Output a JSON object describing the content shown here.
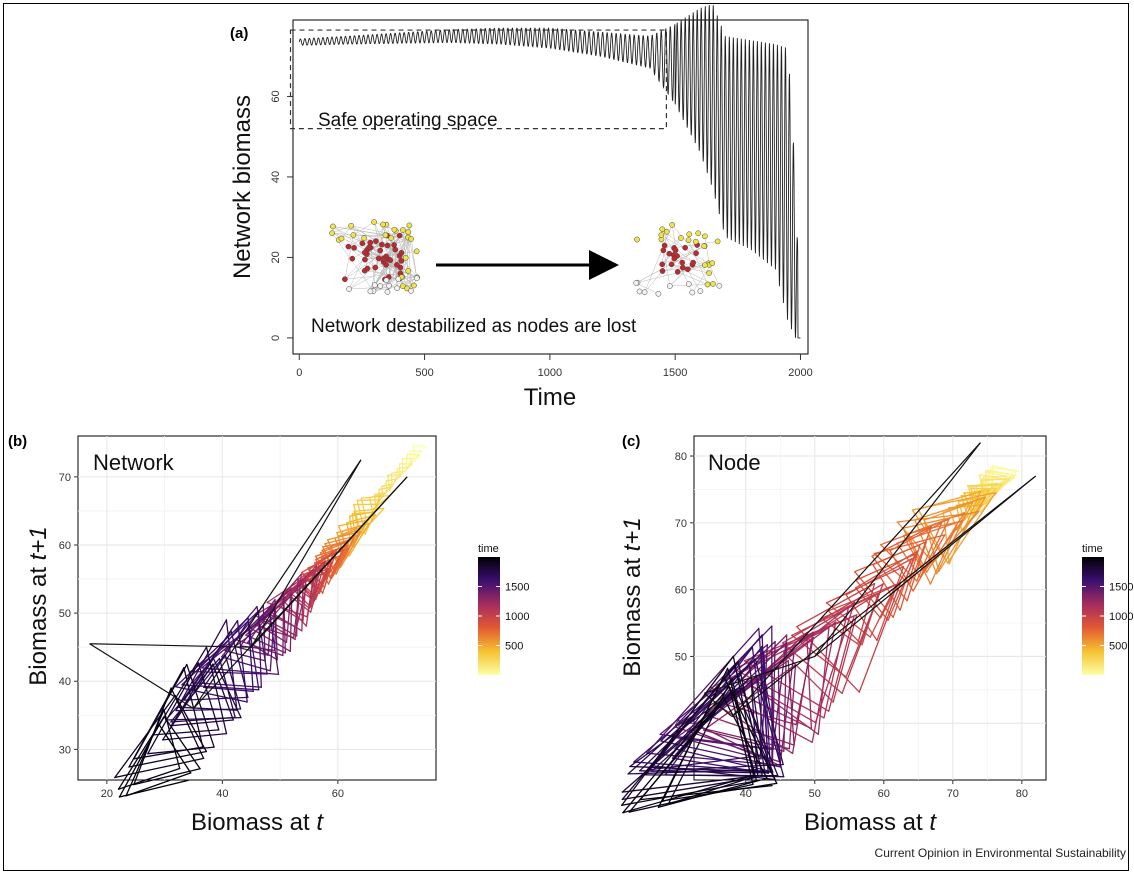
{
  "credit": "Current Opinion in Environmental Sustainability",
  "panel_labels": {
    "a": "(a)",
    "b": "(b)",
    "c": "(c)"
  },
  "colors": {
    "line_a": "#222222",
    "dashed_box": "#333333",
    "gridline": "#e6e6e6",
    "node_red": "#c0282d",
    "node_yellow": "#f0e442",
    "node_white": "#f2f2f2"
  },
  "chart_data": [
    {
      "panel": "(a)",
      "type": "line",
      "xlabel": "Time",
      "ylabel": "Network biomass",
      "xlim": [
        -25,
        2030
      ],
      "ylim": [
        -4,
        79
      ],
      "xticks": [
        0,
        500,
        1000,
        1500,
        2000
      ],
      "yticks": [
        0,
        20,
        40,
        60
      ],
      "series_description_points": {
        "x": [
          0,
          200,
          400,
          600,
          800,
          1000,
          1200,
          1400,
          1500,
          1600,
          1650,
          1700,
          1800,
          1900,
          1950,
          1980,
          2000
        ],
        "y_mean": [
          73.5,
          74,
          74.5,
          75,
          75,
          74.5,
          73,
          71,
          68,
          64,
          60,
          50,
          48,
          45,
          38,
          20,
          0
        ],
        "y_amplitude": [
          0.8,
          1,
          1.3,
          1.6,
          2,
          2.5,
          3,
          4,
          10,
          18,
          23,
          25,
          26,
          28,
          34,
          20,
          0
        ]
      },
      "annotations": {
        "safe_box_label": "Safe operating space",
        "safe_box_x": [
          -35,
          1465
        ],
        "safe_box_y": [
          52,
          76.5
        ],
        "network_label": "Network destabilized as nodes are lost"
      }
    },
    {
      "panel": "(b)",
      "type": "line",
      "title": "Network",
      "xlabel": "Biomass at t",
      "ylabel": "Biomass at t+1",
      "xlim": [
        15,
        77
      ],
      "ylim": [
        25.5,
        76
      ],
      "xticks": [
        20,
        40,
        60
      ],
      "yticks": [
        30,
        40,
        50,
        60,
        70
      ],
      "legend": {
        "title": "time",
        "breaks": [
          500,
          1000,
          1500
        ],
        "labels": [
          "500",
          "1000",
          "1500"
        ],
        "range": [
          0,
          2000
        ],
        "position": "right"
      },
      "trajectory_points": [
        {
          "x": 74,
          "y": 74,
          "t": 0
        },
        {
          "x": 70,
          "y": 70,
          "t": 150
        },
        {
          "x": 66,
          "y": 66,
          "t": 300
        },
        {
          "x": 62,
          "y": 61,
          "t": 500
        },
        {
          "x": 58,
          "y": 57,
          "t": 800
        },
        {
          "x": 54,
          "y": 53,
          "t": 1100
        },
        {
          "x": 50,
          "y": 49,
          "t": 1300
        },
        {
          "x": 45,
          "y": 45,
          "t": 1500
        },
        {
          "x": 40,
          "y": 41,
          "t": 1650
        },
        {
          "x": 35,
          "y": 36,
          "t": 1800
        },
        {
          "x": 30,
          "y": 31,
          "t": 1900
        },
        {
          "x": 28,
          "y": 27.5,
          "t": 1990
        }
      ],
      "outliers": [
        {
          "x": 17,
          "y": 45.5
        },
        {
          "x": 72,
          "y": 70
        },
        {
          "x": 64,
          "y": 72.5
        }
      ]
    },
    {
      "panel": "(c)",
      "type": "line",
      "title": "Node",
      "xlabel": "Biomass at t",
      "ylabel": "Biomass at t+1",
      "xlim": [
        32.5,
        83.5
      ],
      "ylim": [
        31.5,
        83
      ],
      "xticks": [
        40,
        50,
        60,
        70,
        80
      ],
      "yticks": [
        40,
        50,
        60,
        70,
        80
      ],
      "legend": {
        "title": "time",
        "breaks": [
          500,
          1000,
          1500
        ],
        "labels": [
          "500",
          "1000",
          "1500"
        ],
        "range": [
          0,
          2000
        ],
        "position": "right"
      },
      "trajectory_points": [
        {
          "x": 77,
          "y": 77,
          "t": 0
        },
        {
          "x": 73,
          "y": 73,
          "t": 400
        },
        {
          "x": 63,
          "y": 64,
          "t": 800
        },
        {
          "x": 50,
          "y": 50,
          "t": 1100
        },
        {
          "x": 42,
          "y": 42,
          "t": 1300
        },
        {
          "x": 38,
          "y": 41,
          "t": 1500
        },
        {
          "x": 36,
          "y": 37,
          "t": 1800
        },
        {
          "x": 35,
          "y": 34,
          "t": 1990
        }
      ],
      "outliers": [
        {
          "x": 82,
          "y": 77
        },
        {
          "x": 74,
          "y": 82
        },
        {
          "x": 34,
          "y": 44.5
        }
      ]
    }
  ]
}
